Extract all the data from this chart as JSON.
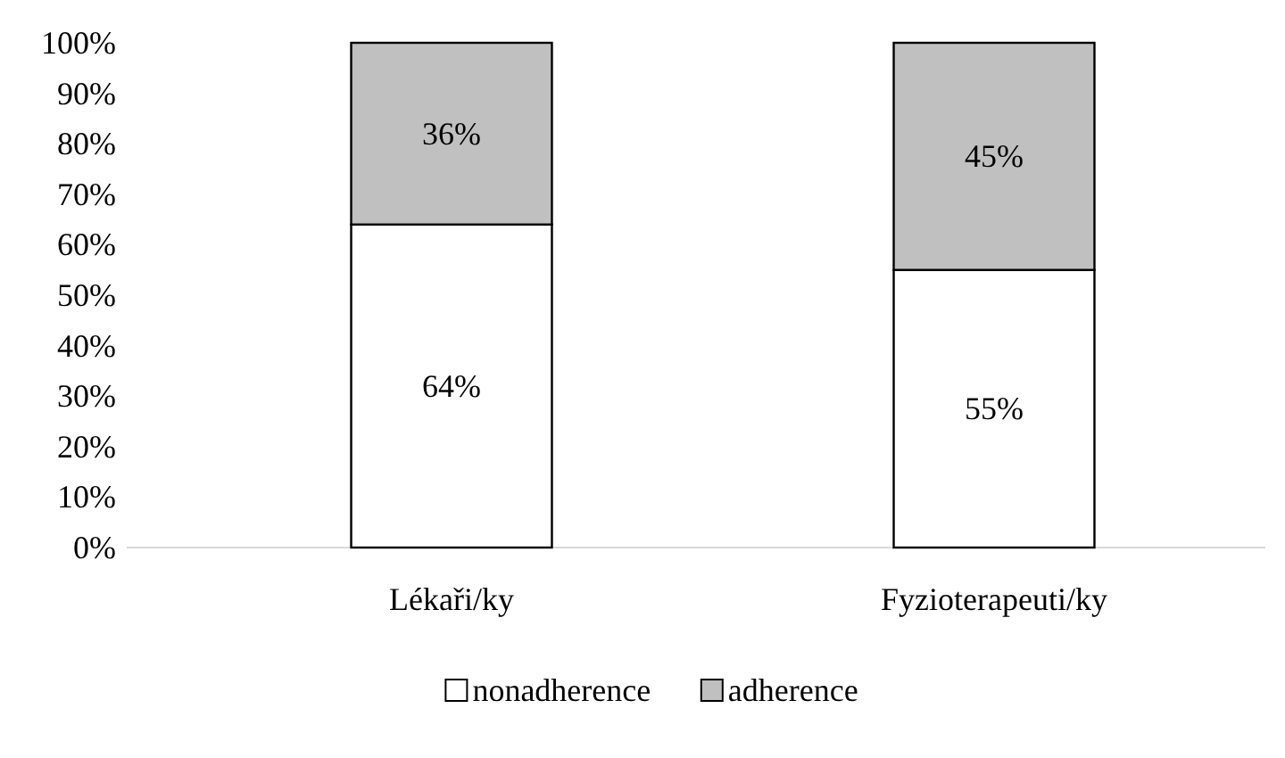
{
  "chart_data": {
    "type": "bar",
    "stacked": true,
    "categories": [
      "Lékaři/ky",
      "Fyzioterapeuti/ky"
    ],
    "series": [
      {
        "name": "nonadherence",
        "color": "#ffffff",
        "values": [
          64,
          55
        ],
        "value_labels": [
          "64%",
          "55%"
        ]
      },
      {
        "name": "adherence",
        "color": "#c0c0c0",
        "values": [
          36,
          45
        ],
        "value_labels": [
          "36%",
          "45%"
        ]
      }
    ],
    "ylim": [
      0,
      100
    ],
    "yticks": [
      {
        "value": 0,
        "label": "0%"
      },
      {
        "value": 10,
        "label": "10%"
      },
      {
        "value": 20,
        "label": "20%"
      },
      {
        "value": 30,
        "label": "30%"
      },
      {
        "value": 40,
        "label": "40%"
      },
      {
        "value": 50,
        "label": "50%"
      },
      {
        "value": 60,
        "label": "60%"
      },
      {
        "value": 70,
        "label": "70%"
      },
      {
        "value": 80,
        "label": "80%"
      },
      {
        "value": 90,
        "label": "90%"
      },
      {
        "value": 100,
        "label": "100%"
      }
    ],
    "grid": false,
    "legend": "bottom"
  }
}
